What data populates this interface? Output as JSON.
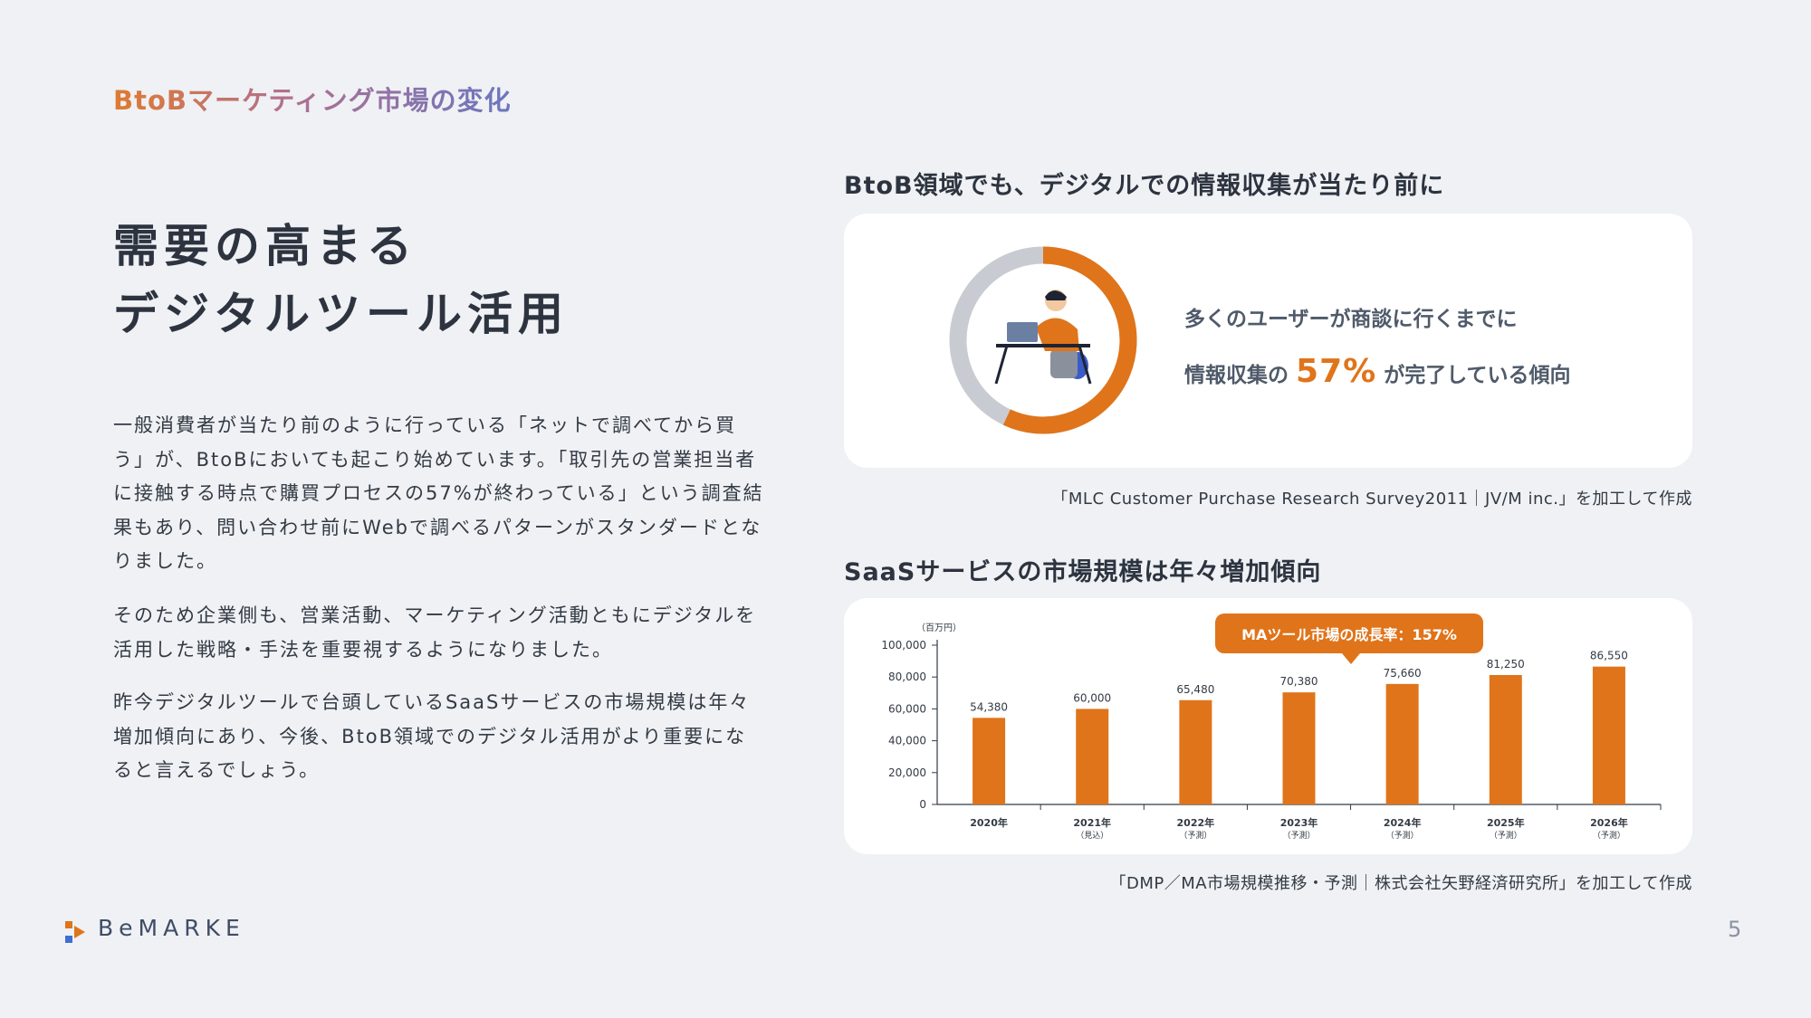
{
  "section_label": "BtoBマーケティング市場の変化",
  "heading": {
    "line1": "需要の高まる",
    "line2": "デジタルツール活用"
  },
  "paragraphs": [
    "一般消費者が当たり前のように行っている「ネットで調べてから買う」が、BtoBにおいても起こり始めています。「取引先の営業担当者に接触する時点で購買プロセスの57%が終わっている」という調査結果もあり、問い合わせ前にWebで調べるパターンがスタンダードとなりました。",
    "そのため企業側も、営業活動、マーケティング活動ともにデジタルを活用した戦略・手法を重要視するようになりました。",
    "昨今デジタルツールで台頭しているSaaSサービスの市場規模は年々増加傾向にあり、今後、BtoB領域でのデジタル活用がより重要になると言えるでしょう。"
  ],
  "survey": {
    "title": "BtoB領域でも、デジタルでの情報収集が当たり前に",
    "line1": "多くのユーザーが商談に行くまでに",
    "line2_prefix": "情報収集の",
    "percent_label": "57%",
    "line2_suffix": "が完了している傾向",
    "source": "「MLC Customer Purchase Research Survey2011｜JV/M inc.」を加工して作成",
    "completed_fraction": 0.57,
    "colors": {
      "completed": "#e0741a",
      "remaining": "#c8ccd2"
    }
  },
  "chart_data": {
    "type": "bar",
    "title": "SaaSサービスの市場規模は年々増加傾向",
    "unit_label": "（百万円）",
    "categories": [
      "2020年",
      "2021年",
      "2022年",
      "2023年",
      "2024年",
      "2025年",
      "2026年"
    ],
    "category_notes": [
      "",
      "（見込）",
      "（予測）",
      "（予測）",
      "（予測）",
      "（予測）",
      "（予測）"
    ],
    "values": [
      54380,
      60000,
      65480,
      70380,
      75660,
      81250,
      86550
    ],
    "value_labels": [
      "54,380",
      "60,000",
      "65,480",
      "70,380",
      "75,660",
      "81,250",
      "86,550"
    ],
    "ylim": [
      0,
      100000
    ],
    "yticks": [
      0,
      20000,
      40000,
      60000,
      80000,
      100000
    ],
    "ytick_labels": [
      "0",
      "20,000",
      "40,000",
      "60,000",
      "80,000",
      "100,000"
    ],
    "grid": false,
    "annotation": "MAツール市場の成長率：157%",
    "bar_color": "#e0741a",
    "source": "「DMP／MA市場規模推移・予測｜株式会社矢野経済研究所」を加工して作成"
  },
  "footer": {
    "logo_text": "BeMARKE",
    "page_number": "5"
  }
}
